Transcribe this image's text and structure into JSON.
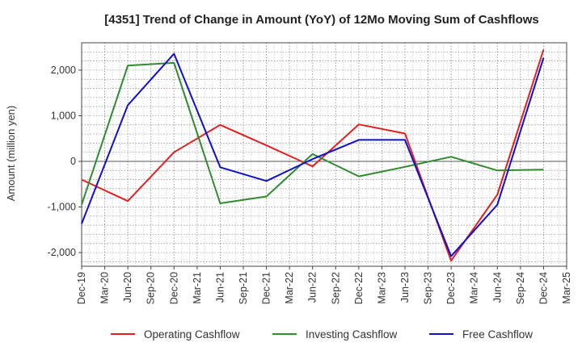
{
  "chart_data": {
    "type": "line",
    "title": "[4351]  Trend of Change in Amount (YoY) of 12Mo Moving Sum of Cashflows",
    "xlabel": "",
    "ylabel": "Amount (million yen)",
    "ylim": [
      -2300,
      2600
    ],
    "yticks": [
      -2000,
      -1000,
      0,
      1000,
      2000
    ],
    "ytick_labels": [
      "-2,000",
      "-1,000",
      "0",
      "1,000",
      "2,000"
    ],
    "grid": true,
    "legend_position": "bottom",
    "categories": [
      "Dec-19",
      "Mar-20",
      "Jun-20",
      "Sep-20",
      "Dec-20",
      "Mar-21",
      "Jun-21",
      "Sep-21",
      "Dec-21",
      "Mar-22",
      "Jun-22",
      "Sep-22",
      "Dec-22",
      "Mar-23",
      "Jun-23",
      "Sep-23",
      "Dec-23",
      "Mar-24",
      "Jun-24",
      "Sep-24",
      "Dec-24",
      "Mar-25"
    ],
    "series": [
      {
        "name": "Operating Cashflow",
        "color": "#e02020",
        "values": [
          -400,
          null,
          -870,
          null,
          200,
          null,
          800,
          null,
          350,
          null,
          -110,
          null,
          810,
          null,
          610,
          null,
          -2180,
          null,
          -730,
          null,
          2450,
          null
        ]
      },
      {
        "name": "Investing Cashflow",
        "color": "#2e8b2e",
        "values": [
          -950,
          null,
          2100,
          null,
          2160,
          null,
          -920,
          null,
          -770,
          null,
          160,
          null,
          -330,
          null,
          -120,
          null,
          100,
          null,
          -200,
          null,
          -180,
          null
        ]
      },
      {
        "name": "Free Cashflow",
        "color": "#1010cc",
        "values": [
          -1370,
          null,
          1230,
          null,
          2360,
          null,
          -130,
          null,
          -430,
          null,
          50,
          null,
          470,
          null,
          470,
          null,
          -2080,
          null,
          -950,
          null,
          2270,
          null
        ]
      }
    ]
  }
}
